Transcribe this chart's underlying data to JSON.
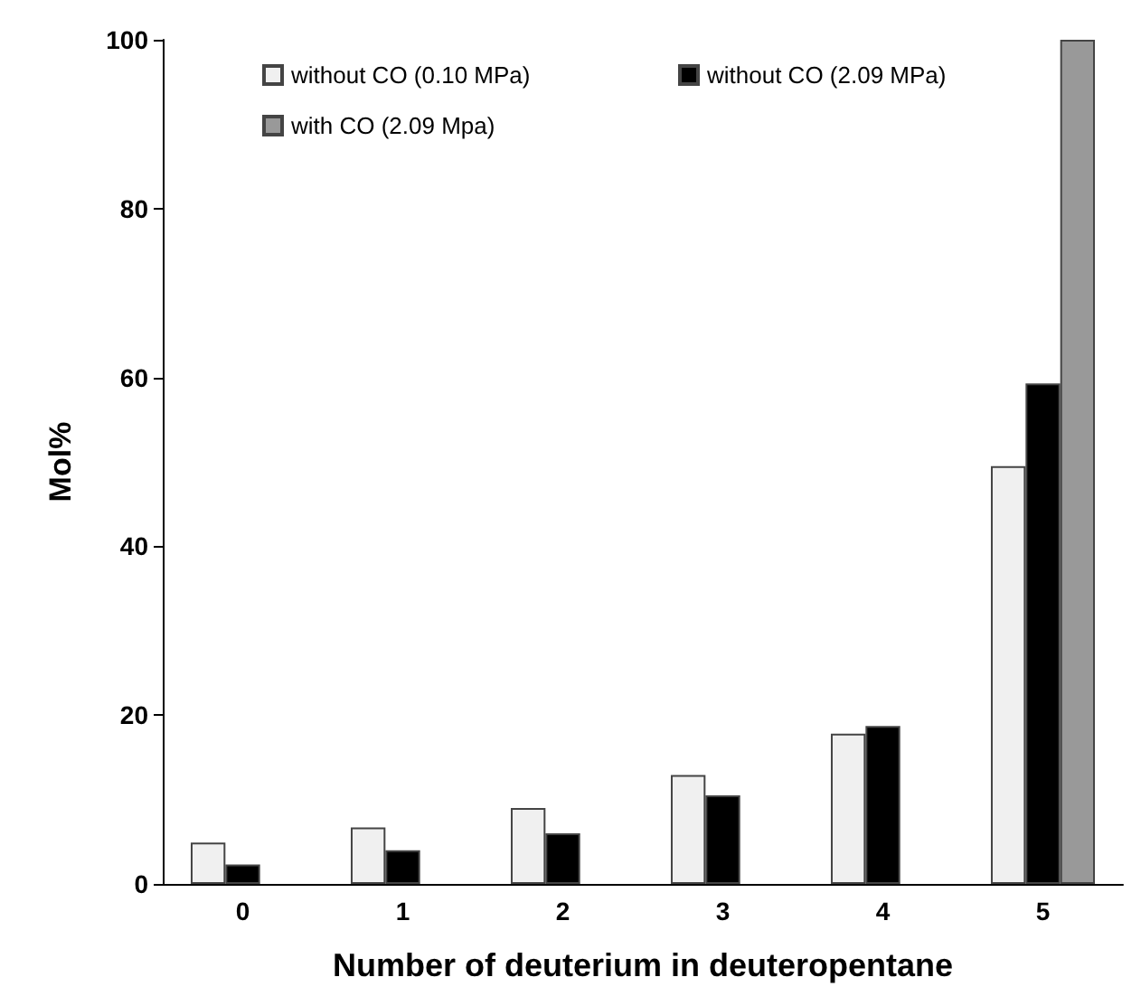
{
  "chart_data": {
    "type": "bar",
    "xlabel": "Number of deuterium in deuteropentane",
    "ylabel": "Mol%",
    "categories": [
      "0",
      "1",
      "2",
      "3",
      "4",
      "5"
    ],
    "series": [
      {
        "name": "without CO (0.10 MPa)",
        "color": "#f0f0f0",
        "values": [
          4.9,
          6.7,
          9.0,
          12.9,
          17.8,
          49.5
        ]
      },
      {
        "name": "without CO (2.09 MPa)",
        "color": "#000000",
        "values": [
          2.3,
          4.0,
          6.0,
          10.5,
          18.7,
          59.3
        ]
      },
      {
        "name": "with CO (2.09 Mpa)",
        "color": "#999999",
        "values": [
          null,
          null,
          null,
          null,
          null,
          100
        ]
      }
    ],
    "ylim": [
      0,
      100
    ],
    "yticks": [
      0,
      20,
      40,
      60,
      80,
      100
    ],
    "grid": false,
    "legend": "top"
  }
}
